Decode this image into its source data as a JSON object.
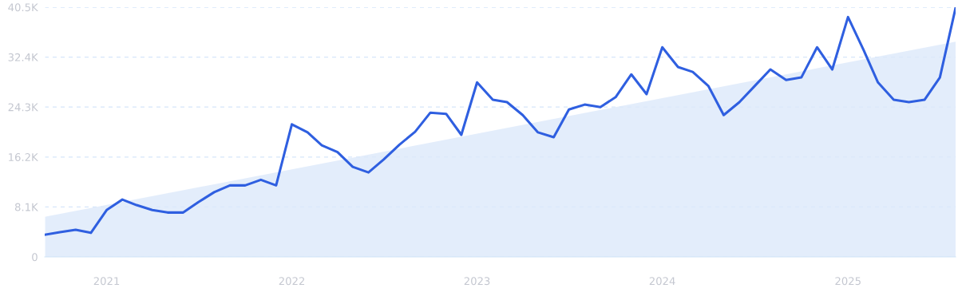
{
  "chart_data": {
    "type": "line",
    "x": [
      "2020-09",
      "2020-10",
      "2020-11",
      "2020-12",
      "2021-01",
      "2021-02",
      "2021-03",
      "2021-04",
      "2021-05",
      "2021-06",
      "2021-07",
      "2021-08",
      "2021-09",
      "2021-10",
      "2021-11",
      "2021-12",
      "2022-01",
      "2022-02",
      "2022-03",
      "2022-04",
      "2022-05",
      "2022-06",
      "2022-07",
      "2022-08",
      "2022-09",
      "2022-10",
      "2022-11",
      "2022-12",
      "2023-01",
      "2023-02",
      "2023-03",
      "2023-04",
      "2023-05",
      "2023-06",
      "2023-07",
      "2023-08",
      "2023-09",
      "2023-10",
      "2023-11",
      "2023-12",
      "2024-01",
      "2024-02",
      "2024-03",
      "2024-04",
      "2024-05",
      "2024-06",
      "2024-07",
      "2024-08",
      "2024-09",
      "2024-10",
      "2024-11",
      "2024-12",
      "2025-01",
      "2025-02",
      "2025-03",
      "2025-04",
      "2025-05",
      "2025-06",
      "2025-07",
      "2025-08"
    ],
    "series": [
      {
        "type": "area",
        "color": "#dce9fa",
        "x": [
          "2020-09",
          "2025-08"
        ],
        "values": [
          6500,
          34900
        ]
      },
      {
        "color": "#2f5fe0",
        "values": [
          3600,
          4000,
          4400,
          3900,
          7600,
          9300,
          8400,
          7600,
          7200,
          7200,
          8900,
          10500,
          11600,
          11600,
          12500,
          11600,
          21500,
          20200,
          18100,
          17000,
          14600,
          13700,
          15800,
          18200,
          20300,
          23400,
          23200,
          19800,
          28300,
          25500,
          25100,
          23000,
          20200,
          19400,
          23900,
          24700,
          24300,
          25900,
          29600,
          26400,
          34000,
          30800,
          30000,
          27700,
          23000,
          25100,
          27700,
          30400,
          28700,
          29100,
          34000,
          30400,
          38900,
          33500,
          28300,
          25500,
          25100,
          25500,
          29100,
          40400
        ]
      }
    ],
    "xlim": [
      "2020-09",
      "2025-08"
    ],
    "xticks": [
      {
        "value": "2021-01",
        "label": "2021"
      },
      {
        "value": "2022-01",
        "label": "2022"
      },
      {
        "value": "2023-01",
        "label": "2023"
      },
      {
        "value": "2024-01",
        "label": "2024"
      },
      {
        "value": "2025-01",
        "label": "2025"
      }
    ],
    "ylim": [
      0,
      40500
    ],
    "yticks": [
      0,
      {
        "value": 8100,
        "label": "8.1K"
      },
      {
        "value": 16200,
        "label": "16.2K"
      },
      {
        "value": 24300,
        "label": "24.3K"
      },
      {
        "value": 32400,
        "label": "32.4K"
      },
      {
        "value": 40500,
        "label": "40.5K"
      }
    ],
    "grid": "y",
    "line_style": "solid",
    "marker": "none"
  }
}
